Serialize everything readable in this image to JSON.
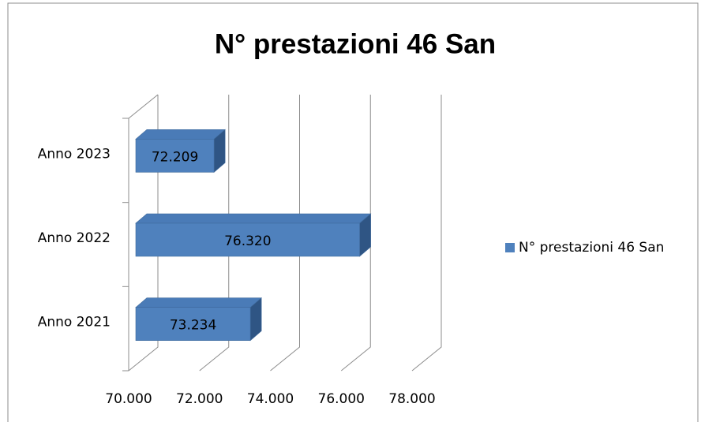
{
  "chart_data": {
    "type": "bar3d_horizontal",
    "title": "N° prestazioni 46 San",
    "categories": [
      "Anno 2021",
      "Anno 2022",
      "Anno 2023"
    ],
    "series": [
      {
        "name": "N° prestazioni 46 San",
        "color": "#4f81bd",
        "values": [
          73234,
          76320,
          72209
        ],
        "value_labels": [
          "73.234",
          "76.320",
          "72.209"
        ]
      }
    ],
    "xlim": [
      70000,
      78000
    ],
    "xticks": [
      {
        "value": 70000,
        "label": "70.000"
      },
      {
        "value": 72000,
        "label": "72.000"
      },
      {
        "value": 74000,
        "label": "74.000"
      },
      {
        "value": 76000,
        "label": "76.000"
      },
      {
        "value": 78000,
        "label": "78.000"
      }
    ],
    "grid": true,
    "legend": "right"
  }
}
